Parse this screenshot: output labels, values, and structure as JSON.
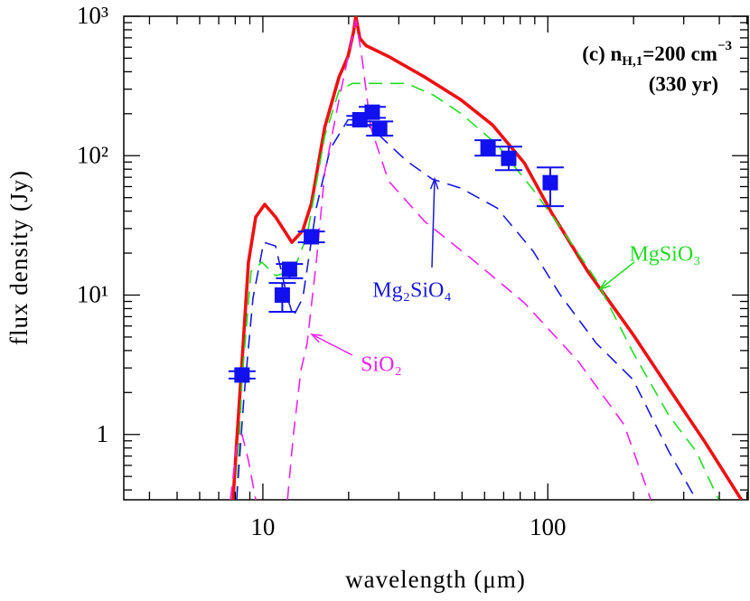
{
  "chart_data": {
    "type": "line",
    "xlabel": "wavelength (μm)",
    "ylabel": "flux density (Jy)",
    "xlog": true,
    "ylog": true,
    "xlim": [
      3.25,
      505
    ],
    "ylim": [
      0.34,
      1000
    ],
    "xticks": [
      10,
      100
    ],
    "xminorticks": [
      4,
      5,
      6,
      7,
      8,
      9,
      20,
      30,
      40,
      50,
      60,
      70,
      80,
      90,
      200,
      300,
      400,
      500
    ],
    "yticks": [
      1,
      {
        "value": 10,
        "label": "10¹"
      },
      {
        "value": 100,
        "label": "10²"
      },
      {
        "value": 1000,
        "label": "10³"
      }
    ],
    "yminorticks": [
      0.4,
      0.5,
      0.6,
      0.7,
      0.8,
      0.9,
      2,
      3,
      4,
      5,
      6,
      7,
      8,
      9,
      20,
      30,
      40,
      50,
      60,
      70,
      80,
      90,
      200,
      300,
      400,
      500,
      600,
      700,
      800,
      900
    ],
    "annotation": {
      "line1": [
        "(c) n",
        "H,1",
        "=200 cm",
        "−3"
      ],
      "line2": "(330 yr)"
    },
    "series": [
      {
        "color": "#ee1111",
        "style": "solid",
        "x": [
          7.86,
          8.09,
          8.45,
          8.9,
          9.44,
          10.15,
          11.08,
          12.64,
          13.8,
          14.8,
          16.5,
          18.5,
          19.9,
          20.8,
          21.2,
          21.9,
          23.0,
          27.6,
          37.0,
          49.5,
          64.0,
          82.7,
          103,
          138,
          199,
          266,
          357,
          478
        ],
        "values": [
          0.34,
          0.875,
          3.34,
          17.2,
          36.3,
          44.7,
          36.3,
          23.9,
          29.0,
          45.4,
          161,
          366,
          515,
          771,
          1000,
          694,
          617,
          515,
          366,
          252,
          166,
          88.7,
          39.1,
          14.8,
          5.23,
          2.14,
          0.875,
          0.34
        ]
      },
      {
        "name": "MgSiO₃",
        "color": "#22dd22",
        "style": "dashed",
        "x": [
          8.09,
          8.45,
          9.09,
          9.93,
          11.08,
          12.8,
          14.3,
          16.5,
          18.5,
          20.6,
          25.7,
          32.0,
          39.8,
          49.5,
          66.4,
          88.9,
          110,
          148,
          199,
          266,
          332,
          398
        ],
        "values": [
          0.34,
          2.48,
          14.8,
          17.2,
          13.8,
          14.8,
          26.9,
          139,
          292,
          330,
          330,
          330,
          271,
          201,
          120,
          56.8,
          31.3,
          12.8,
          3.88,
          1.37,
          0.754,
          0.34
        ]
      },
      {
        "name": "Mg₂SiO₄",
        "color": "#1a1adc",
        "style": "dashed",
        "x": [
          8.09,
          8.58,
          9.23,
          10.07,
          11.08,
          12.2,
          12.8,
          13.8,
          15.4,
          17.2,
          19.9,
          22.2,
          25.7,
          32.0,
          39.3,
          49.5,
          66.4,
          88.9,
          110,
          148,
          199,
          266,
          332
        ],
        "values": [
          0.34,
          1.84,
          9.49,
          23.9,
          22.5,
          9.49,
          7.05,
          9.49,
          42.1,
          111,
          181,
          181,
          139,
          91.4,
          67.9,
          58.5,
          42.1,
          20.6,
          10.2,
          4.51,
          2.48,
          0.754,
          0.34
        ]
      },
      {
        "name": "SiO₂",
        "color": "#ee22ee",
        "style": "dashed",
        "x": [
          7.69,
          8.09,
          8.45,
          8.9,
          9.44,
          null,
          12.2,
          12.8,
          13.6,
          14.3,
          15.4,
          16.5,
          18.5,
          20.3,
          21.2,
          22.2,
          23.9,
          27.6,
          37.0,
          53.3,
          82.7,
          128,
          185,
          230
        ],
        "values": [
          0.34,
          0.81,
          1.0,
          0.65,
          0.34,
          null,
          0.34,
          1.0,
          2.88,
          4.51,
          17.2,
          76.4,
          252,
          617,
          935,
          531,
          161,
          65.9,
          33.7,
          18.6,
          8.81,
          3.34,
          1.18,
          0.34
        ]
      }
    ],
    "points": {
      "color": "#1010f0",
      "x": [
        8.45,
        11.7,
        12.4,
        14.8,
        21.9,
        24.2,
        25.7,
        61.7,
        72.9,
        102
      ],
      "values": [
        2.67,
        10,
        15.3,
        26.2,
        181,
        205,
        156,
        114,
        95.7,
        64
      ],
      "yerr_high": [
        2.84,
        12.2,
        16.7,
        28.6,
        193,
        224,
        176,
        129,
        116,
        82.4
      ],
      "yerr_low": [
        2.52,
        7.59,
        13.2,
        23.9,
        166,
        187,
        139,
        100,
        78.7,
        43.4
      ]
    }
  }
}
